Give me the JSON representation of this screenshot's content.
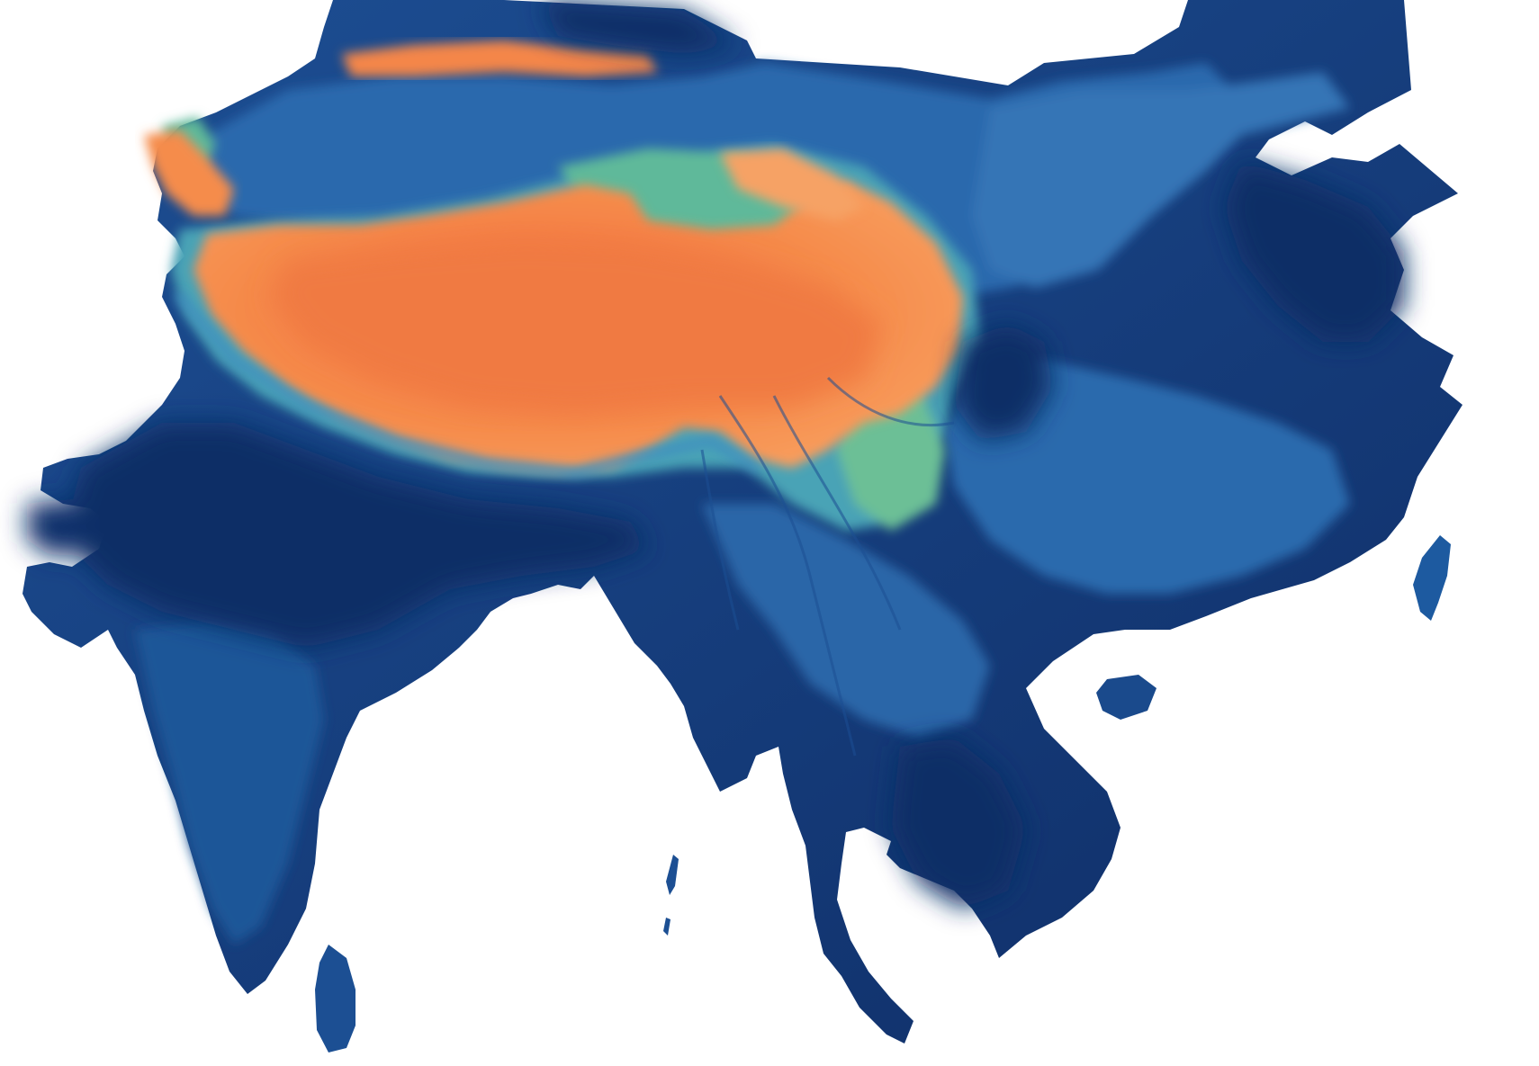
{
  "map": {
    "type": "elevation-relief",
    "colors": {
      "background": "#ffffff",
      "lowland": "#0f2d66",
      "low": "#1c4f93",
      "mid": "#2b6db0",
      "upper": "#3f8fbf",
      "teal": "#5fb99a",
      "high": "#f08a4b",
      "peak": "#f46a3a"
    }
  }
}
